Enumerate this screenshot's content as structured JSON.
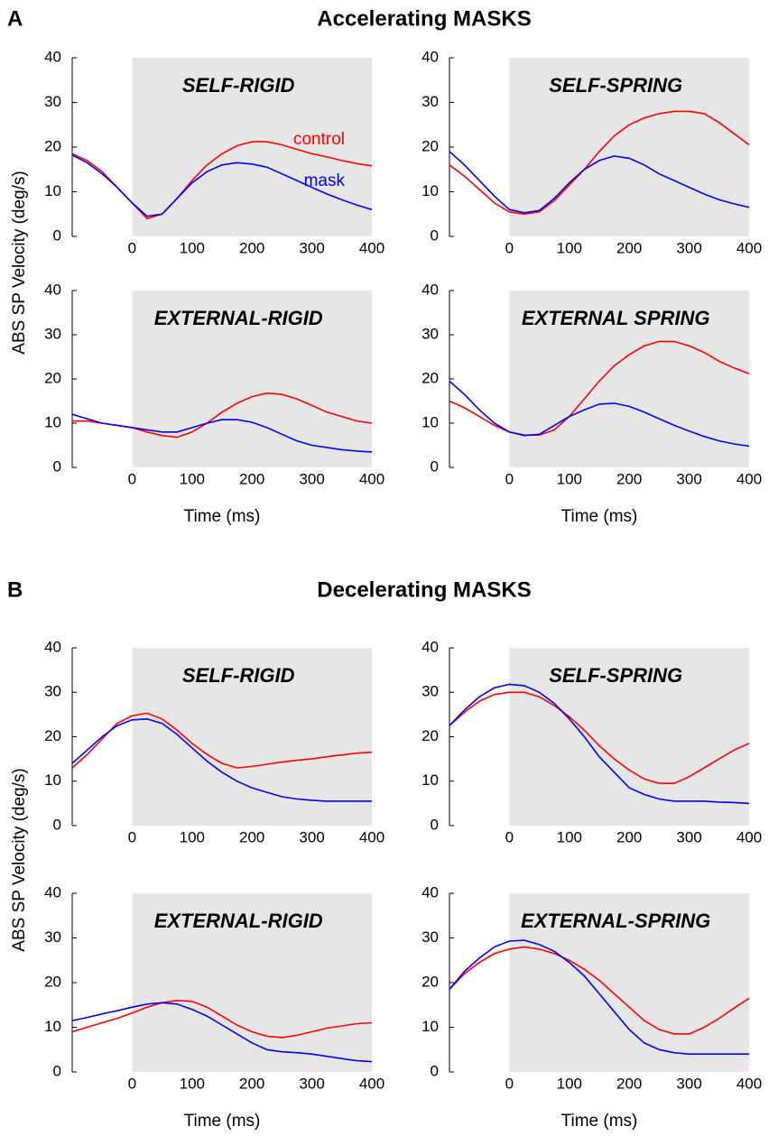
{
  "panels": [
    {
      "letter": "A",
      "title": "Accelerating MASKS",
      "ylabel": "ABS  SP Velocity (deg/s)"
    },
    {
      "letter": "B",
      "title": "Decelerating MASKS",
      "ylabel": "ABS  SP Velocity (deg/s)"
    }
  ],
  "chart_data": [
    {
      "type": "line",
      "title": "SELF-RIGID",
      "shaded_span": [
        0,
        400
      ],
      "x": [
        -100,
        -75,
        -50,
        -25,
        0,
        25,
        50,
        75,
        100,
        125,
        150,
        175,
        200,
        225,
        250,
        275,
        300,
        325,
        350,
        375,
        400
      ],
      "series": [
        {
          "name": "control",
          "color": "#ff0000",
          "values": [
            18.5,
            17,
            14.5,
            11,
            7.5,
            4,
            5,
            8.5,
            12.5,
            16,
            18.5,
            20.3,
            21.2,
            21.2,
            20.5,
            19.5,
            18.5,
            17.8,
            17,
            16.3,
            15.8
          ]
        },
        {
          "name": "mask",
          "color": "#0000ff",
          "values": [
            18.2,
            16.5,
            14,
            11,
            7.5,
            4.5,
            5,
            8.5,
            12,
            14.5,
            16,
            16.5,
            16.2,
            15.5,
            14,
            12.5,
            11,
            9.5,
            8.2,
            7,
            6
          ]
        }
      ],
      "xlim": [
        -100,
        400
      ],
      "ylim": [
        0,
        40
      ],
      "xticks": [
        0,
        100,
        200,
        300,
        400
      ],
      "yticks": [
        0,
        10,
        20,
        30,
        40
      ]
    },
    {
      "type": "line",
      "title": "SELF-SPRING",
      "shaded_span": [
        0,
        400
      ],
      "x": [
        -100,
        -75,
        -50,
        -25,
        0,
        25,
        50,
        75,
        100,
        125,
        150,
        175,
        200,
        225,
        250,
        275,
        300,
        325,
        350,
        375,
        400
      ],
      "series": [
        {
          "color": "#ff0000",
          "values": [
            16,
            13.5,
            10.5,
            7.5,
            5.5,
            5,
            5.5,
            8,
            11.5,
            15,
            19,
            22.5,
            25,
            26.5,
            27.5,
            28,
            28,
            27.5,
            25.5,
            23,
            20.5
          ]
        },
        {
          "color": "#0000ff",
          "values": [
            19,
            16,
            12.5,
            9,
            6,
            5.3,
            5.8,
            8.5,
            12,
            15,
            17,
            18,
            17.5,
            16,
            14,
            12.5,
            11,
            9.5,
            8.2,
            7.3,
            6.5
          ]
        }
      ],
      "xlim": [
        -100,
        400
      ],
      "ylim": [
        0,
        40
      ],
      "xticks": [
        0,
        100,
        200,
        300,
        400
      ],
      "yticks": [
        0,
        10,
        20,
        30,
        40
      ]
    },
    {
      "type": "line",
      "title": "EXTERNAL-RIGID",
      "xlabel": "Time (ms)",
      "shaded_span": [
        0,
        400
      ],
      "x": [
        -100,
        -75,
        -50,
        -25,
        0,
        25,
        50,
        75,
        100,
        125,
        150,
        175,
        200,
        225,
        250,
        275,
        300,
        325,
        350,
        375,
        400
      ],
      "series": [
        {
          "color": "#ff0000",
          "values": [
            10.5,
            10.5,
            10,
            9.5,
            9,
            8,
            7.2,
            6.8,
            8,
            10,
            12.5,
            14.5,
            16,
            16.8,
            16.5,
            15.5,
            14,
            12.5,
            11.5,
            10.5,
            10
          ]
        },
        {
          "color": "#0000ff",
          "values": [
            12,
            11,
            10,
            9.5,
            9,
            8.5,
            8,
            8,
            9,
            10,
            10.8,
            10.8,
            10.2,
            9,
            7.5,
            6,
            5,
            4.5,
            4,
            3.7,
            3.5
          ]
        }
      ],
      "xlim": [
        -100,
        400
      ],
      "ylim": [
        0,
        40
      ],
      "xticks": [
        0,
        100,
        200,
        300,
        400
      ],
      "yticks": [
        0,
        10,
        20,
        30,
        40
      ]
    },
    {
      "type": "line",
      "title": "EXTERNAL SPRING",
      "xlabel": "Time (ms)",
      "shaded_span": [
        0,
        400
      ],
      "x": [
        -100,
        -75,
        -50,
        -25,
        0,
        25,
        50,
        75,
        100,
        125,
        150,
        175,
        200,
        225,
        250,
        275,
        300,
        325,
        350,
        375,
        400
      ],
      "series": [
        {
          "color": "#ff0000",
          "values": [
            15,
            13.5,
            11.5,
            9.5,
            8,
            7.3,
            7.3,
            8.5,
            11.5,
            15.5,
            19.5,
            23,
            25.5,
            27.5,
            28.5,
            28.5,
            27.5,
            26,
            24,
            22.5,
            21.2
          ]
        },
        {
          "color": "#0000ff",
          "values": [
            19.5,
            16.5,
            13,
            10,
            8,
            7.2,
            7.5,
            9.5,
            11.5,
            13,
            14.3,
            14.5,
            13.8,
            12.5,
            11,
            9.5,
            8.2,
            7,
            6,
            5.3,
            4.8
          ]
        }
      ],
      "xlim": [
        -100,
        400
      ],
      "ylim": [
        0,
        40
      ],
      "xticks": [
        0,
        100,
        200,
        300,
        400
      ],
      "yticks": [
        0,
        10,
        20,
        30,
        40
      ]
    },
    {
      "type": "line",
      "title": "SELF-RIGID",
      "shaded_span": [
        0,
        400
      ],
      "x": [
        -100,
        -75,
        -50,
        -25,
        0,
        25,
        50,
        75,
        100,
        125,
        150,
        175,
        200,
        225,
        250,
        275,
        300,
        325,
        350,
        375,
        400
      ],
      "series": [
        {
          "color": "#ff0000",
          "values": [
            13,
            16,
            19.5,
            23,
            24.7,
            25.3,
            24,
            21.5,
            18.5,
            16,
            14,
            13,
            13.3,
            13.8,
            14.3,
            14.7,
            15,
            15.5,
            15.9,
            16.3,
            16.5
          ]
        },
        {
          "color": "#0000ff",
          "values": [
            14,
            17,
            20,
            22.5,
            23.8,
            24,
            23,
            20.5,
            17.5,
            14.5,
            12,
            10,
            8.5,
            7.5,
            6.5,
            6,
            5.7,
            5.5,
            5.5,
            5.5,
            5.5
          ]
        }
      ],
      "xlim": [
        -100,
        400
      ],
      "ylim": [
        0,
        40
      ],
      "xticks": [
        0,
        100,
        200,
        300,
        400
      ],
      "yticks": [
        0,
        10,
        20,
        30,
        40
      ]
    },
    {
      "type": "line",
      "title": "SELF-SPRING",
      "shaded_span": [
        0,
        400
      ],
      "x": [
        -100,
        -75,
        -50,
        -25,
        0,
        25,
        50,
        75,
        100,
        125,
        150,
        175,
        200,
        225,
        250,
        275,
        300,
        325,
        350,
        375,
        400
      ],
      "series": [
        {
          "color": "#ff0000",
          "values": [
            22.5,
            25.5,
            28,
            29.5,
            30,
            30,
            29,
            27,
            24.5,
            21.5,
            18,
            15,
            12.5,
            10.5,
            9.5,
            9.5,
            11,
            13,
            15,
            17,
            18.5
          ]
        },
        {
          "color": "#0000ff",
          "values": [
            22.5,
            26,
            29,
            31,
            31.8,
            31.5,
            30,
            27.5,
            24,
            20,
            15.5,
            12,
            8.5,
            7,
            6,
            5.5,
            5.5,
            5.5,
            5.3,
            5.2,
            5
          ]
        }
      ],
      "xlim": [
        -100,
        400
      ],
      "ylim": [
        0,
        40
      ],
      "xticks": [
        0,
        100,
        200,
        300,
        400
      ],
      "yticks": [
        0,
        10,
        20,
        30,
        40
      ]
    },
    {
      "type": "line",
      "title": "EXTERNAL-RIGID",
      "xlabel": "Time (ms)",
      "shaded_span": [
        0,
        400
      ],
      "x": [
        -100,
        -75,
        -50,
        -25,
        0,
        25,
        50,
        75,
        100,
        125,
        150,
        175,
        200,
        225,
        250,
        275,
        300,
        325,
        350,
        375,
        400
      ],
      "series": [
        {
          "color": "#ff0000",
          "values": [
            9,
            10,
            11,
            12,
            13.2,
            14.5,
            15.5,
            16,
            15.8,
            14.5,
            12.5,
            10.5,
            9,
            8,
            7.7,
            8.2,
            9,
            9.8,
            10.3,
            10.8,
            11
          ]
        },
        {
          "color": "#0000ff",
          "values": [
            11.5,
            12.2,
            13,
            13.7,
            14.5,
            15.2,
            15.5,
            15.2,
            14,
            12.5,
            10.5,
            8.5,
            6.5,
            5,
            4.5,
            4.3,
            4,
            3.5,
            3,
            2.5,
            2.3
          ]
        }
      ],
      "xlim": [
        -100,
        400
      ],
      "ylim": [
        0,
        40
      ],
      "xticks": [
        0,
        100,
        200,
        300,
        400
      ],
      "yticks": [
        0,
        10,
        20,
        30,
        40
      ]
    },
    {
      "type": "line",
      "title": "EXTERNAL-SPRING",
      "xlabel": "Time (ms)",
      "shaded_span": [
        0,
        400
      ],
      "x": [
        -100,
        -75,
        -50,
        -25,
        0,
        25,
        50,
        75,
        100,
        125,
        150,
        175,
        200,
        225,
        250,
        275,
        300,
        325,
        350,
        375,
        400
      ],
      "series": [
        {
          "color": "#ff0000",
          "values": [
            18.5,
            22,
            24.5,
            26.5,
            27.5,
            28,
            27.5,
            26.5,
            25,
            23,
            20.5,
            17.5,
            14.5,
            11.5,
            9.5,
            8.5,
            8.5,
            10,
            12,
            14.3,
            16.5
          ]
        },
        {
          "color": "#0000ff",
          "values": [
            18.5,
            22.5,
            25.5,
            28,
            29.3,
            29.5,
            28.5,
            27,
            24.5,
            21.5,
            17.5,
            13.5,
            9.5,
            6.5,
            5,
            4.3,
            4,
            4,
            4,
            4,
            4
          ]
        }
      ],
      "xlim": [
        -100,
        400
      ],
      "ylim": [
        0,
        40
      ],
      "xticks": [
        0,
        100,
        200,
        300,
        400
      ],
      "yticks": [
        0,
        10,
        20,
        30,
        40
      ]
    }
  ]
}
